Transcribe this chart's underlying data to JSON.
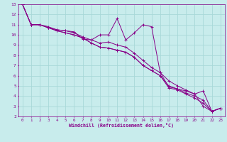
{
  "title": "",
  "xlabel": "Windchill (Refroidissement éolien,°C)",
  "ylabel": "",
  "bg_color": "#c8ecec",
  "grid_color": "#a8d8d8",
  "line_color": "#880088",
  "xlim": [
    -0.5,
    23.5
  ],
  "ylim": [
    2,
    13
  ],
  "xticks": [
    0,
    1,
    2,
    3,
    4,
    5,
    6,
    7,
    8,
    9,
    10,
    11,
    12,
    13,
    14,
    15,
    16,
    17,
    18,
    19,
    20,
    21,
    22,
    23
  ],
  "yticks": [
    2,
    3,
    4,
    5,
    6,
    7,
    8,
    9,
    10,
    11,
    12,
    13
  ],
  "series": [
    [
      13.0,
      11.0,
      11.0,
      10.8,
      10.5,
      10.4,
      10.3,
      9.6,
      9.5,
      10.0,
      10.0,
      11.6,
      9.5,
      10.2,
      11.0,
      10.8,
      6.3,
      4.9,
      4.7,
      4.5,
      4.2,
      3.0,
      2.5,
      2.8
    ],
    [
      13.0,
      11.0,
      11.0,
      10.7,
      10.5,
      10.4,
      10.2,
      9.8,
      9.5,
      9.2,
      9.3,
      9.0,
      8.8,
      8.2,
      7.5,
      6.8,
      6.3,
      5.5,
      5.0,
      4.6,
      4.2,
      4.5,
      2.5,
      2.8
    ],
    [
      13.0,
      11.0,
      11.0,
      10.7,
      10.4,
      10.2,
      10.0,
      9.7,
      9.2,
      8.8,
      8.7,
      8.5,
      8.3,
      7.8,
      7.0,
      6.5,
      6.0,
      5.0,
      4.7,
      4.3,
      4.0,
      3.6,
      2.5,
      2.8
    ],
    [
      13.0,
      11.0,
      11.0,
      10.7,
      10.4,
      10.2,
      10.0,
      9.7,
      9.2,
      8.8,
      8.7,
      8.5,
      8.3,
      7.8,
      7.0,
      6.5,
      6.0,
      4.8,
      4.6,
      4.2,
      3.8,
      3.3,
      2.5,
      2.8
    ]
  ]
}
